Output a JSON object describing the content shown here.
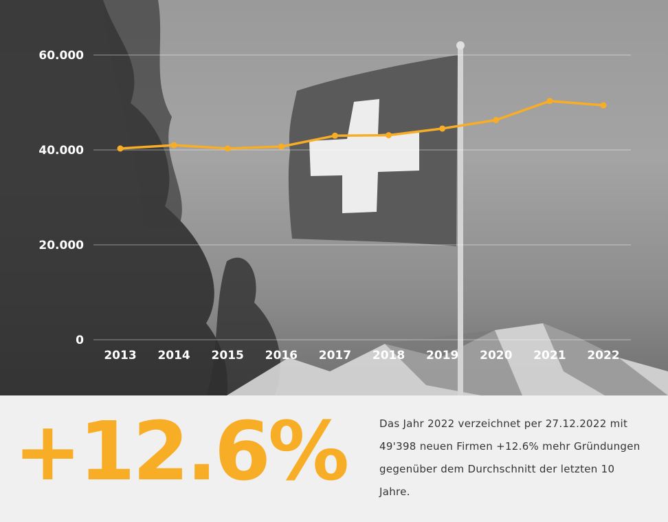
{
  "chart_data": {
    "type": "line",
    "title": "",
    "xlabel": "",
    "ylabel": "",
    "categories": [
      "2013",
      "2014",
      "2015",
      "2016",
      "2017",
      "2018",
      "2019",
      "2020",
      "2021",
      "2022"
    ],
    "series": [
      {
        "values": [
          40300,
          41000,
          40300,
          40700,
          43000,
          43100,
          44500,
          46300,
          50300,
          49398
        ]
      }
    ],
    "y_ticks": [
      "0",
      "20.000",
      "40.000",
      "60.000"
    ],
    "y_tick_values": [
      0,
      20000,
      40000,
      60000
    ],
    "ylim": [
      0,
      60000
    ],
    "grid": true,
    "legend": "none",
    "line_color": "#f8ad26",
    "axis_text_color": "#ffffff"
  },
  "stat": {
    "value": "+12.6%",
    "color": "#f8ad26",
    "description": "Das Jahr 2022 verzeichnet per 27.12.2022 mit 49'398 neuen Firmen +12.6% mehr Gründungen gegenüber dem Durchschnitt der letzten 10 Jahre."
  },
  "background": {
    "image": "Swiss flag on a flagpole in front of trees and snowy mountains, black and white photo"
  }
}
